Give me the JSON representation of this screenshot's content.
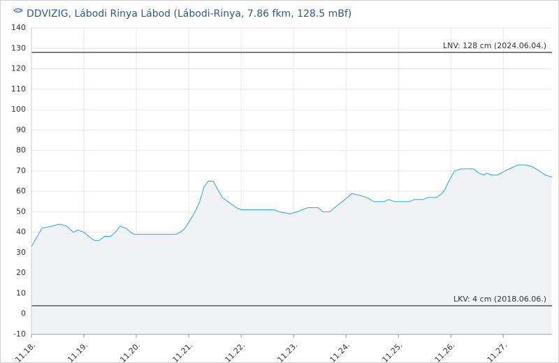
{
  "chart_data": {
    "type": "line",
    "title": "DDVIZIG, Lábodi Rinya Lábod (Lábodi-Rinya, 7.86 fkm, 128.5 mBf)",
    "x": [
      0,
      0.2,
      0.4,
      0.53,
      0.67,
      0.8,
      0.89,
      1.0,
      1.09,
      1.2,
      1.29,
      1.4,
      1.51,
      1.6,
      1.69,
      1.8,
      1.89,
      1.96,
      2.76,
      2.84,
      2.93,
      3.03,
      3.12,
      3.21,
      3.29,
      3.37,
      3.47,
      3.53,
      3.64,
      3.8,
      3.91,
      4.0,
      4.63,
      4.73,
      4.93,
      5.07,
      5.27,
      5.47,
      5.56,
      5.69,
      5.83,
      5.93,
      6.03,
      6.11,
      6.27,
      6.4,
      6.53,
      6.73,
      6.81,
      6.93,
      7.2,
      7.31,
      7.47,
      7.56,
      7.73,
      7.83,
      7.89,
      7.96,
      8.07,
      8.2,
      8.43,
      8.53,
      8.63,
      8.69,
      8.76,
      8.89,
      9.03,
      9.2,
      9.29,
      9.43,
      9.56,
      9.69,
      9.8,
      9.93
    ],
    "series": [
      {
        "color": "#29a8d8",
        "fill": "#f1f2f6",
        "values": [
          33,
          42,
          43,
          44,
          43,
          40,
          41,
          40,
          38,
          36,
          36,
          38,
          38,
          40,
          43,
          42,
          40,
          39,
          39,
          40,
          42,
          46,
          50,
          55,
          62,
          65,
          65,
          62,
          57,
          54,
          52,
          51,
          51,
          50,
          49,
          50,
          52,
          52,
          50,
          50,
          53,
          55,
          57,
          59,
          58,
          57,
          55,
          55,
          56,
          55,
          55,
          56,
          56,
          57,
          57,
          59,
          61,
          65,
          70,
          71,
          71,
          69,
          68,
          69,
          68,
          68,
          70,
          72,
          73,
          73,
          72,
          70,
          68,
          67
        ]
      }
    ],
    "xlim": [
      0,
      9.93
    ],
    "xticks": [
      {
        "value": 0,
        "label": "11.18."
      },
      {
        "value": 1,
        "label": "11.19."
      },
      {
        "value": 2,
        "label": "11.20."
      },
      {
        "value": 3,
        "label": "11.21."
      },
      {
        "value": 4,
        "label": "11.22."
      },
      {
        "value": 5,
        "label": "11.23."
      },
      {
        "value": 6,
        "label": "11.24."
      },
      {
        "value": 7,
        "label": "11.25."
      },
      {
        "value": 8,
        "label": "11.26."
      },
      {
        "value": 9,
        "label": "11.27."
      }
    ],
    "ylim": [
      -10,
      140
    ],
    "yticks": [
      -10,
      0,
      10,
      20,
      30,
      40,
      50,
      60,
      70,
      80,
      90,
      100,
      110,
      120,
      130,
      140
    ],
    "grid": true,
    "reference_lines": [
      {
        "value": 128,
        "label": "LNV: 128 cm (2024.06.04.)",
        "color": "#555555"
      },
      {
        "value": 4,
        "label": "LKV: 4 cm (2018.06.06.)",
        "color": "#555555"
      }
    ]
  }
}
